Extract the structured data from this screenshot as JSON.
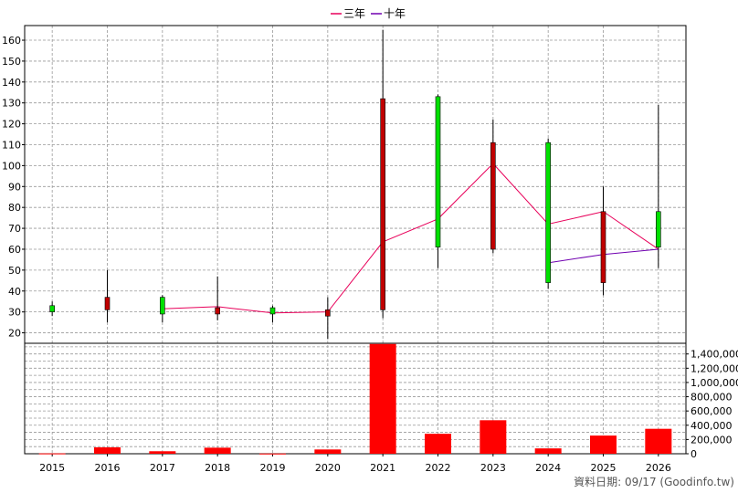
{
  "legend": [
    {
      "name": "三年",
      "color": "#e8005a"
    },
    {
      "name": "十年",
      "color": "#7000b0"
    }
  ],
  "source_note": "資料日期: 09/17  (Goodinfo.tw)",
  "colors": {
    "up": "#00e000",
    "down": "#c00000",
    "volume": "#ff0000",
    "wick": "#000000",
    "grid": "#999999"
  },
  "chart_data": [
    {
      "type": "candlestick",
      "categories": [
        "2015",
        "2016",
        "2017",
        "2018",
        "2019",
        "2020",
        "2021",
        "2022",
        "2023",
        "2024",
        "2025",
        "2026"
      ],
      "ylim": [
        15,
        167
      ],
      "yticks": [
        20,
        30,
        40,
        50,
        60,
        70,
        80,
        90,
        100,
        110,
        120,
        130,
        140,
        150,
        160
      ],
      "grid": true,
      "legend_position": "top-center",
      "candles": [
        {
          "open": 30,
          "close": 33,
          "high": 35,
          "low": 28
        },
        {
          "open": 37,
          "close": 31,
          "high": 50,
          "low": 25
        },
        {
          "open": 29,
          "close": 37,
          "high": 38,
          "low": 25
        },
        {
          "open": 32,
          "close": 29,
          "high": 47,
          "low": 26
        },
        {
          "open": 29,
          "close": 32,
          "high": 33,
          "low": 25
        },
        {
          "open": 31,
          "close": 28,
          "high": 37,
          "low": 17
        },
        {
          "open": 132,
          "close": 31,
          "high": 165,
          "low": 27
        },
        {
          "open": 61,
          "close": 133,
          "high": 134,
          "low": 51
        },
        {
          "open": 111,
          "close": 60,
          "high": 122,
          "low": 58
        },
        {
          "open": 44,
          "close": 111,
          "high": 113,
          "low": 41
        },
        {
          "open": 78,
          "close": 44,
          "high": 90,
          "low": 38
        },
        {
          "open": 61,
          "close": 78,
          "high": 129,
          "low": 51
        }
      ],
      "series": [
        {
          "name": "三年",
          "values": [
            null,
            null,
            31.5,
            32.5,
            29.5,
            30,
            63.5,
            74.5,
            101,
            72,
            78,
            60
          ]
        },
        {
          "name": "十年",
          "values": [
            null,
            null,
            null,
            null,
            null,
            null,
            null,
            null,
            null,
            53.5,
            57.5,
            60
          ]
        }
      ]
    },
    {
      "type": "bar",
      "categories": [
        "2015",
        "2016",
        "2017",
        "2018",
        "2019",
        "2020",
        "2021",
        "2022",
        "2023",
        "2024",
        "2025",
        "2026"
      ],
      "values": [
        5000,
        90000,
        35000,
        85000,
        3000,
        60000,
        1540000,
        280000,
        470000,
        75000,
        255000,
        350000
      ],
      "ylim": [
        0,
        1550000
      ],
      "yticks": [
        "0",
        "200,000",
        "400,000",
        "600,000",
        "800,000",
        "1,000,000",
        "1,200,000",
        "1,400,000"
      ],
      "ytick_values": [
        0,
        200000,
        400000,
        600000,
        800000,
        1000000,
        1200000,
        1400000
      ],
      "y_axis_side": "right",
      "grid": true
    }
  ]
}
